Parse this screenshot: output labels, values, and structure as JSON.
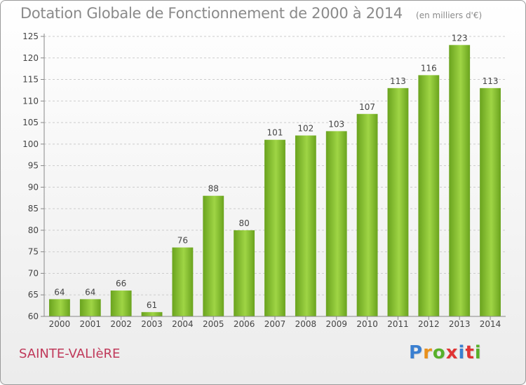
{
  "title": "Dotation Globale de Fonctionnement de 2000 à 2014",
  "unit": "(en milliers d'€)",
  "commune": "SAINTE-VALIèRE",
  "logo": {
    "text": "Proxiti",
    "colors": [
      "#3a7fd0",
      "#e8901c",
      "#57b02a",
      "#e03434",
      "#3a7fd0",
      "#e03434",
      "#57b02a"
    ]
  },
  "colors": {
    "bar": "#7cb829",
    "bar_light": "#a6da4c",
    "axis": "#888888",
    "grid": "#cccccc",
    "text": "#444444"
  },
  "chart_data": {
    "type": "bar",
    "title": "Dotation Globale de Fonctionnement de 2000 à 2014",
    "xlabel": "",
    "ylabel": "",
    "ylim": [
      60,
      125
    ],
    "yticks": [
      60,
      65,
      70,
      75,
      80,
      85,
      90,
      95,
      100,
      105,
      110,
      115,
      120,
      125
    ],
    "grid": true,
    "categories": [
      "2000",
      "2001",
      "2002",
      "2003",
      "2004",
      "2005",
      "2006",
      "2007",
      "2008",
      "2009",
      "2010",
      "2011",
      "2012",
      "2013",
      "2014"
    ],
    "values": [
      64,
      64,
      66,
      61,
      76,
      88,
      80,
      101,
      102,
      103,
      107,
      113,
      116,
      123,
      113
    ]
  }
}
